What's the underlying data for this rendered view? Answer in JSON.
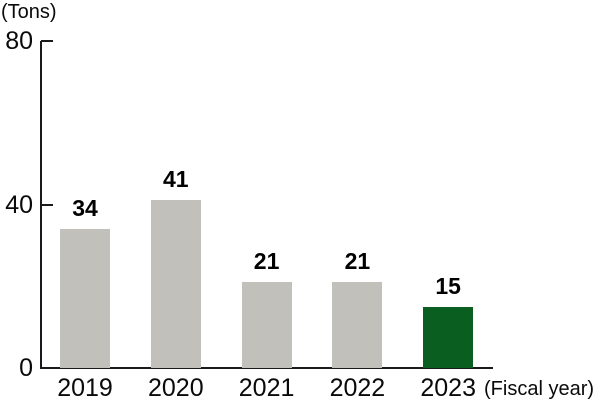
{
  "chart_data": {
    "type": "bar",
    "title": "",
    "categories": [
      "2019",
      "2020",
      "2021",
      "2022",
      "2023"
    ],
    "values": [
      34,
      41,
      21,
      21,
      15
    ],
    "value_labels": [
      "34",
      "41",
      "21",
      "21",
      "15"
    ],
    "ylabel": "(Tons)",
    "xlabel": "(Fiscal year)",
    "yticks": [
      0,
      40,
      80
    ],
    "ylim": [
      0,
      80
    ],
    "grid": false,
    "legend": false,
    "bar_default_color": "#c1c0bb",
    "highlight_index": 4,
    "highlight_color": "#0a5e20"
  },
  "colors": {
    "bar_gray": "#c1c0bb",
    "bar_green": "#0a5e20",
    "axis": "#1a1a1a",
    "text": "#0a0a0a",
    "background": "#ffffff"
  }
}
